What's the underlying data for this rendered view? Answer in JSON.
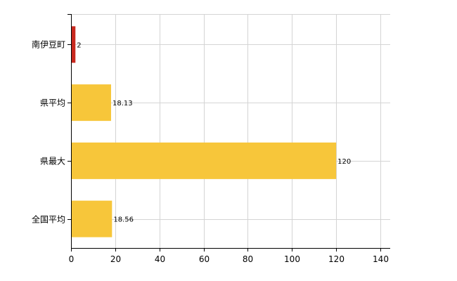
{
  "chart_data": {
    "type": "bar",
    "orientation": "horizontal",
    "categories": [
      "南伊豆町",
      "県平均",
      "県最大",
      "全国平均"
    ],
    "values": [
      2,
      18.13,
      120,
      18.56
    ],
    "data_labels": [
      "2",
      "18.13",
      "120",
      "18.56"
    ],
    "bar_colors": [
      "#c8281e",
      "#f7c63a",
      "#f7c63a",
      "#f7c63a"
    ],
    "xlim": [
      0,
      140
    ],
    "x_ticks": [
      0,
      20,
      40,
      60,
      80,
      100,
      120,
      140
    ],
    "x_tick_labels": [
      "0",
      "20",
      "40",
      "60",
      "80",
      "100",
      "120",
      "140"
    ],
    "grid": true,
    "title": "",
    "xlabel": "",
    "ylabel": ""
  }
}
